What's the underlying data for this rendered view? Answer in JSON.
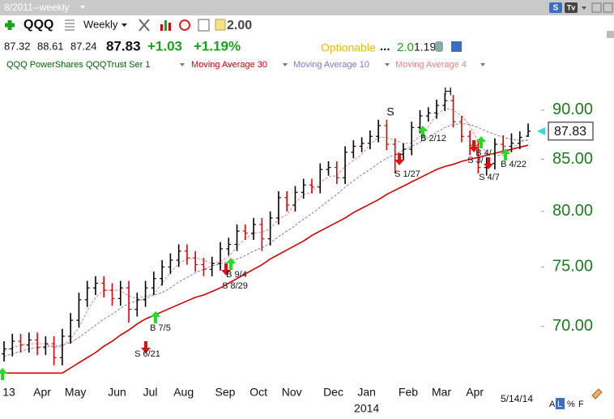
{
  "toolbar": {
    "period": "8/2011--weekly",
    "badges": [
      "S",
      "Tv"
    ],
    "symbol": "QQQ",
    "interval": "Weekly",
    "zoom": "2.00",
    "change": "+1.03",
    "change_pct": "+1.19%",
    "optionable": "Optionable",
    "ellipsis": "...",
    "value1": "2.0",
    "value2": "1.19"
  },
  "footer": [
    "A",
    "L",
    "%",
    "F"
  ],
  "chart_data": {
    "type": "ohlc",
    "log_scale": true,
    "ylim": [
      65.7,
      93.8
    ],
    "yticks": [
      {
        "value": 90,
        "label": "90.00"
      },
      {
        "value": 85,
        "label": "85.00"
      },
      {
        "value": 80,
        "label": "80.00"
      },
      {
        "value": 75,
        "label": "75.00"
      },
      {
        "value": 70,
        "label": "70.00"
      }
    ],
    "year_label": "2014",
    "date_label": "5/14/14",
    "up_color": "#000000",
    "down_color": "#e00000",
    "categories": [
      "13",
      null,
      null,
      null,
      "Apr",
      null,
      null,
      null,
      "May",
      null,
      null,
      null,
      null,
      "Jun",
      null,
      null,
      null,
      "Jul",
      null,
      null,
      null,
      "Aug",
      null,
      null,
      null,
      null,
      "Sep",
      null,
      null,
      null,
      "Oct",
      null,
      null,
      null,
      "Nov",
      null,
      null,
      null,
      null,
      "Dec",
      null,
      null,
      null,
      "Jan",
      null,
      null,
      null,
      null,
      "Feb",
      null,
      null,
      null,
      "Mar",
      null,
      null,
      null,
      "Apr",
      null,
      null,
      null,
      null,
      null,
      null,
      null
    ],
    "series": [
      {
        "name": "QQQ PowerShares QQQTrust Ser 1",
        "color": "#006400",
        "open": [
          67.8,
          68.2,
          68.8,
          68.5,
          68.9,
          68.3,
          68.6,
          67.5,
          69.2,
          70.5,
          72.2,
          73.2,
          73.6,
          73.0,
          72.3,
          73.2,
          71.4,
          72.2,
          73.2,
          74.0,
          75.0,
          75.6,
          76.4,
          75.8,
          75.2,
          74.8,
          75.3,
          76.6,
          77.0,
          78.2,
          78.0,
          78.8,
          77.5,
          79.4,
          81.3,
          80.6,
          81.8,
          82.5,
          82.3,
          84.0,
          84.2,
          83.2,
          85.7,
          86.3,
          86.6,
          87.3,
          88.4,
          86.5,
          85.5,
          86.0,
          88.2,
          89.4,
          89.7,
          90.5,
          91.0,
          88.8,
          87.3,
          86.4,
          84.2,
          84.6,
          86.5,
          86.3,
          86.6,
          87.32
        ],
        "high": [
          68.8,
          69.4,
          69.4,
          69.5,
          69.5,
          69.2,
          69.2,
          69.8,
          71.1,
          72.8,
          73.8,
          74.2,
          74.2,
          73.6,
          73.8,
          73.8,
          72.8,
          73.8,
          74.6,
          75.6,
          76.2,
          77.0,
          77.0,
          76.4,
          75.8,
          75.9,
          77.2,
          77.6,
          78.8,
          78.8,
          79.4,
          79.4,
          80.0,
          81.9,
          81.9,
          82.4,
          83.1,
          83.1,
          84.6,
          84.8,
          84.8,
          86.3,
          86.9,
          87.2,
          87.9,
          89.0,
          89.0,
          87.1,
          86.6,
          88.8,
          90.0,
          90.3,
          91.1,
          91.8,
          91.6,
          89.4,
          87.9,
          87.0,
          85.2,
          87.1,
          87.4,
          87.6,
          87.8,
          88.61
        ],
        "low": [
          67.2,
          67.6,
          67.9,
          67.9,
          67.7,
          67.7,
          66.9,
          66.9,
          68.6,
          69.9,
          71.6,
          72.6,
          72.4,
          71.7,
          71.7,
          70.3,
          70.8,
          71.6,
          72.6,
          73.4,
          74.4,
          75.0,
          75.2,
          74.6,
          74.2,
          74.2,
          74.7,
          76.0,
          76.4,
          77.4,
          77.4,
          76.4,
          76.9,
          78.8,
          80.0,
          80.0,
          81.2,
          81.7,
          81.7,
          83.4,
          82.6,
          82.6,
          85.1,
          85.7,
          86.0,
          86.7,
          85.9,
          83.6,
          84.9,
          85.4,
          87.6,
          88.8,
          89.1,
          89.9,
          88.2,
          86.7,
          85.4,
          83.6,
          83.4,
          84.0,
          85.7,
          85.7,
          86.0,
          87.24
        ],
        "close": [
          68.2,
          68.8,
          68.5,
          68.9,
          68.3,
          68.6,
          67.5,
          69.2,
          70.5,
          72.2,
          73.2,
          73.6,
          73.0,
          72.3,
          73.2,
          71.4,
          72.2,
          73.2,
          74.0,
          75.0,
          75.6,
          76.4,
          75.8,
          75.2,
          74.8,
          75.3,
          76.6,
          77.0,
          78.2,
          78.0,
          78.8,
          77.5,
          79.4,
          81.3,
          80.6,
          81.8,
          82.5,
          82.3,
          84.0,
          84.2,
          83.2,
          85.7,
          86.3,
          86.6,
          87.3,
          88.4,
          86.5,
          85.5,
          86.0,
          88.2,
          89.4,
          89.7,
          90.5,
          91.0,
          88.8,
          87.3,
          86.4,
          84.2,
          84.6,
          86.5,
          86.3,
          86.6,
          87.2,
          87.83
        ]
      },
      {
        "name": "Moving Average 30",
        "color": "#d40000",
        "dash": false,
        "values": [
          66.3,
          66.3,
          66.3,
          66.3,
          66.3,
          66.3,
          66.3,
          66.3,
          66.7,
          67.1,
          67.5,
          67.9,
          68.4,
          68.8,
          69.3,
          69.7,
          70.2,
          70.6,
          70.9,
          71.2,
          71.5,
          71.8,
          72.1,
          72.4,
          72.6,
          72.9,
          73.2,
          73.6,
          74.0,
          74.4,
          74.8,
          75.2,
          75.7,
          76.1,
          76.5,
          76.9,
          77.3,
          77.8,
          78.2,
          78.6,
          79.0,
          79.4,
          79.9,
          80.3,
          80.7,
          81.1,
          81.6,
          82.0,
          82.4,
          82.8,
          83.2,
          83.6,
          84.0,
          84.3,
          84.5,
          84.8,
          85.0,
          85.2,
          85.4,
          85.6,
          85.8,
          86.0,
          86.2,
          86.4
        ]
      },
      {
        "name": "Moving Average 10",
        "color": "#7a7ad6",
        "dash": true,
        "values": [
          67.6,
          67.8,
          68.0,
          68.2,
          68.3,
          68.4,
          68.4,
          68.5,
          68.7,
          69.1,
          69.6,
          70.1,
          70.6,
          71.0,
          71.5,
          71.9,
          72.1,
          72.3,
          72.6,
          72.8,
          73.2,
          73.7,
          74.1,
          74.5,
          74.8,
          75.1,
          75.3,
          75.5,
          75.7,
          76.0,
          76.4,
          76.7,
          77.1,
          77.7,
          78.2,
          78.7,
          79.3,
          79.8,
          80.4,
          81.0,
          81.6,
          82.3,
          82.9,
          83.5,
          84.0,
          84.6,
          85.1,
          85.5,
          85.9,
          86.3,
          86.7,
          87.2,
          87.7,
          88.2,
          88.5,
          88.6,
          88.5,
          88.2,
          87.8,
          87.5,
          87.2,
          87.0,
          86.9,
          86.9
        ]
      },
      {
        "name": "Moving Average 4",
        "color": "#f08080",
        "dash": true,
        "values": [
          68.0,
          68.3,
          68.5,
          68.6,
          68.6,
          68.6,
          68.3,
          68.4,
          69.0,
          69.9,
          71.3,
          72.4,
          73.0,
          73.0,
          73.0,
          72.5,
          72.3,
          72.5,
          72.7,
          73.6,
          74.5,
          75.3,
          75.7,
          75.8,
          75.6,
          75.3,
          75.5,
          75.9,
          76.8,
          77.5,
          78.0,
          78.1,
          78.4,
          79.3,
          79.7,
          80.8,
          81.6,
          81.8,
          82.7,
          83.3,
          83.4,
          84.3,
          84.9,
          85.5,
          86.5,
          87.2,
          87.2,
          86.9,
          86.6,
          86.6,
          87.3,
          88.3,
          89.5,
          90.2,
          90.0,
          89.4,
          88.4,
          86.7,
          85.6,
          85.4,
          85.4,
          86.0,
          86.7,
          87.0
        ]
      }
    ],
    "annotations": [
      "S",
      "H",
      "B 7/5",
      "S 6/21",
      "B 9/4",
      "S 8/29",
      "S 1/27",
      "B 2/12",
      "S 3/",
      "B 4/",
      "S 4/7",
      "B 4/22"
    ]
  }
}
